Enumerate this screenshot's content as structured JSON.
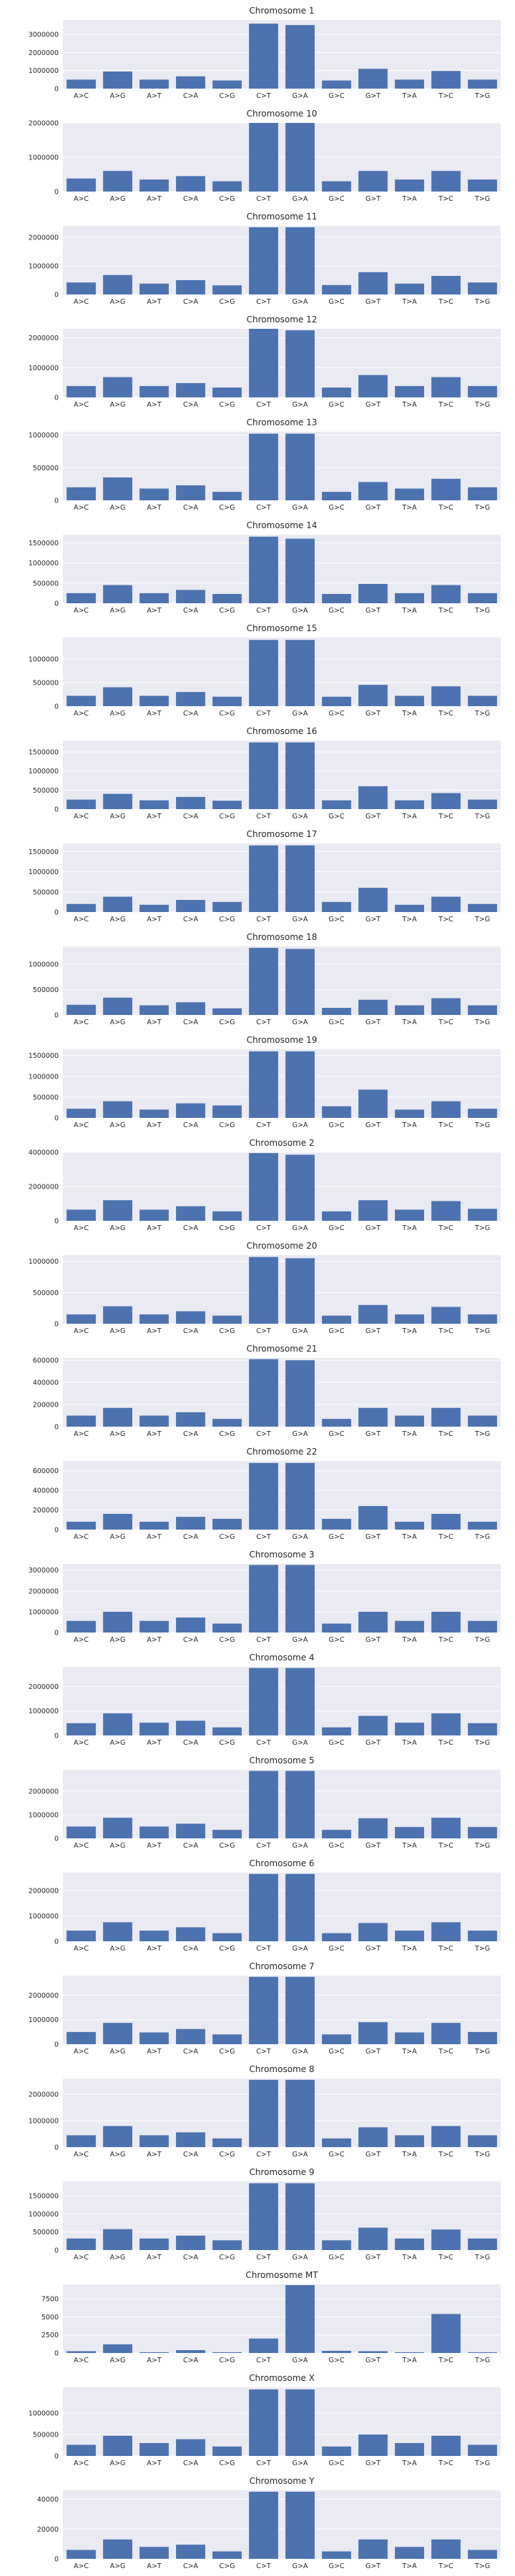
{
  "categories": [
    "A>C",
    "A>G",
    "A>T",
    "C>A",
    "C>G",
    "C>T",
    "G>A",
    "G>C",
    "G>T",
    "T>A",
    "T>C",
    "T>G"
  ],
  "colors": {
    "bar": "#4c72b0",
    "panel": "#eaeaf2",
    "grid": "#ffffff",
    "text": "#262626"
  },
  "chart_data": [
    {
      "type": "bar",
      "title": "Chromosome 1",
      "ylim": [
        0,
        3800000
      ],
      "yticks": [
        0,
        1000000,
        2000000,
        3000000
      ],
      "values": [
        500000,
        950000,
        500000,
        680000,
        450000,
        3600000,
        3520000,
        450000,
        1100000,
        500000,
        980000,
        500000
      ]
    },
    {
      "type": "bar",
      "title": "Chromosome 10",
      "ylim": [
        0,
        2000000
      ],
      "yticks": [
        0,
        1000000,
        2000000
      ],
      "values": [
        380000,
        600000,
        350000,
        450000,
        300000,
        2000000,
        2000000,
        300000,
        600000,
        350000,
        600000,
        350000
      ]
    },
    {
      "type": "bar",
      "title": "Chromosome 11",
      "ylim": [
        0,
        2400000
      ],
      "yticks": [
        0,
        1000000,
        2000000
      ],
      "values": [
        420000,
        680000,
        380000,
        500000,
        320000,
        2350000,
        2350000,
        330000,
        780000,
        380000,
        650000,
        420000
      ]
    },
    {
      "type": "bar",
      "title": "Chromosome 12",
      "ylim": [
        0,
        2300000
      ],
      "yticks": [
        0,
        1000000,
        2000000
      ],
      "values": [
        380000,
        680000,
        380000,
        480000,
        330000,
        2300000,
        2250000,
        330000,
        750000,
        380000,
        680000,
        380000
      ]
    },
    {
      "type": "bar",
      "title": "Chromosome 13",
      "ylim": [
        0,
        1050000
      ],
      "yticks": [
        0,
        500000,
        1000000
      ],
      "values": [
        200000,
        350000,
        180000,
        230000,
        130000,
        1020000,
        1020000,
        130000,
        280000,
        180000,
        330000,
        200000
      ]
    },
    {
      "type": "bar",
      "title": "Chromosome 14",
      "ylim": [
        0,
        1700000
      ],
      "yticks": [
        0,
        500000,
        1000000,
        1500000
      ],
      "values": [
        250000,
        450000,
        250000,
        330000,
        230000,
        1650000,
        1600000,
        230000,
        480000,
        250000,
        450000,
        250000
      ]
    },
    {
      "type": "bar",
      "title": "Chromosome 15",
      "ylim": [
        0,
        1450000
      ],
      "yticks": [
        0,
        500000,
        1000000
      ],
      "values": [
        220000,
        400000,
        220000,
        300000,
        200000,
        1400000,
        1400000,
        200000,
        450000,
        220000,
        420000,
        220000
      ]
    },
    {
      "type": "bar",
      "title": "Chromosome 16",
      "ylim": [
        0,
        1800000
      ],
      "yticks": [
        0,
        500000,
        1000000,
        1500000
      ],
      "values": [
        250000,
        400000,
        230000,
        320000,
        220000,
        1750000,
        1750000,
        230000,
        600000,
        230000,
        420000,
        250000
      ]
    },
    {
      "type": "bar",
      "title": "Chromosome 17",
      "ylim": [
        0,
        1700000
      ],
      "yticks": [
        0,
        500000,
        1000000,
        1500000
      ],
      "values": [
        200000,
        380000,
        180000,
        300000,
        250000,
        1650000,
        1650000,
        250000,
        600000,
        180000,
        380000,
        200000
      ]
    },
    {
      "type": "bar",
      "title": "Chromosome 18",
      "ylim": [
        0,
        1350000
      ],
      "yticks": [
        0,
        500000,
        1000000
      ],
      "values": [
        200000,
        340000,
        190000,
        250000,
        130000,
        1320000,
        1300000,
        140000,
        300000,
        190000,
        330000,
        190000
      ]
    },
    {
      "type": "bar",
      "title": "Chromosome 19",
      "ylim": [
        0,
        1650000
      ],
      "yticks": [
        0,
        500000,
        1000000,
        1500000
      ],
      "values": [
        220000,
        400000,
        200000,
        350000,
        300000,
        1600000,
        1600000,
        280000,
        680000,
        200000,
        400000,
        220000
      ]
    },
    {
      "type": "bar",
      "title": "Chromosome 2",
      "ylim": [
        0,
        4000000
      ],
      "yticks": [
        0,
        2000000,
        4000000
      ],
      "values": [
        650000,
        1200000,
        650000,
        850000,
        550000,
        3950000,
        3850000,
        550000,
        1200000,
        650000,
        1150000,
        700000
      ]
    },
    {
      "type": "bar",
      "title": "Chromosome 20",
      "ylim": [
        0,
        1100000
      ],
      "yticks": [
        0,
        500000,
        1000000
      ],
      "values": [
        150000,
        280000,
        150000,
        200000,
        130000,
        1070000,
        1050000,
        130000,
        300000,
        150000,
        270000,
        150000
      ]
    },
    {
      "type": "bar",
      "title": "Chromosome 21",
      "ylim": [
        0,
        620000
      ],
      "yticks": [
        0,
        200000,
        400000,
        600000
      ],
      "values": [
        100000,
        170000,
        100000,
        130000,
        70000,
        610000,
        600000,
        70000,
        170000,
        100000,
        170000,
        100000
      ]
    },
    {
      "type": "bar",
      "title": "Chromosome 22",
      "ylim": [
        0,
        700000
      ],
      "yticks": [
        0,
        200000,
        400000,
        600000
      ],
      "values": [
        80000,
        160000,
        80000,
        130000,
        110000,
        680000,
        680000,
        110000,
        240000,
        80000,
        160000,
        80000
      ]
    },
    {
      "type": "bar",
      "title": "Chromosome 3",
      "ylim": [
        0,
        3300000
      ],
      "yticks": [
        0,
        1000000,
        2000000,
        3000000
      ],
      "values": [
        560000,
        1000000,
        560000,
        720000,
        430000,
        3250000,
        3250000,
        430000,
        1000000,
        560000,
        1000000,
        560000
      ]
    },
    {
      "type": "bar",
      "title": "Chromosome 4",
      "ylim": [
        0,
        2800000
      ],
      "yticks": [
        0,
        1000000,
        2000000
      ],
      "values": [
        500000,
        900000,
        520000,
        600000,
        330000,
        2750000,
        2750000,
        330000,
        800000,
        520000,
        900000,
        500000
      ]
    },
    {
      "type": "bar",
      "title": "Chromosome 5",
      "ylim": [
        0,
        2900000
      ],
      "yticks": [
        0,
        1000000,
        2000000
      ],
      "values": [
        500000,
        870000,
        500000,
        620000,
        360000,
        2850000,
        2850000,
        360000,
        850000,
        480000,
        870000,
        480000
      ]
    },
    {
      "type": "bar",
      "title": "Chromosome 6",
      "ylim": [
        0,
        2700000
      ],
      "yticks": [
        0,
        1000000,
        2000000
      ],
      "values": [
        420000,
        750000,
        420000,
        550000,
        320000,
        2650000,
        2650000,
        320000,
        720000,
        420000,
        750000,
        420000
      ]
    },
    {
      "type": "bar",
      "title": "Chromosome 7",
      "ylim": [
        0,
        2800000
      ],
      "yticks": [
        0,
        1000000,
        2000000
      ],
      "values": [
        500000,
        870000,
        480000,
        620000,
        400000,
        2750000,
        2750000,
        400000,
        900000,
        480000,
        870000,
        500000
      ]
    },
    {
      "type": "bar",
      "title": "Chromosome 8",
      "ylim": [
        0,
        2600000
      ],
      "yticks": [
        0,
        1000000,
        2000000
      ],
      "values": [
        450000,
        800000,
        450000,
        560000,
        330000,
        2550000,
        2550000,
        330000,
        750000,
        450000,
        800000,
        450000
      ]
    },
    {
      "type": "bar",
      "title": "Chromosome 9",
      "ylim": [
        0,
        1900000
      ],
      "yticks": [
        0,
        500000,
        1000000,
        1500000
      ],
      "values": [
        320000,
        580000,
        320000,
        400000,
        270000,
        1850000,
        1850000,
        270000,
        620000,
        320000,
        570000,
        320000
      ]
    },
    {
      "type": "bar",
      "title": "Chromosome MT",
      "ylim": [
        0,
        9500
      ],
      "yticks": [
        0,
        2500,
        5000,
        7500
      ],
      "values": [
        250,
        1200,
        100,
        400,
        100,
        2000,
        9400,
        300,
        250,
        100,
        5400,
        100
      ]
    },
    {
      "type": "bar",
      "title": "Chromosome X",
      "ylim": [
        0,
        1600000
      ],
      "yticks": [
        0,
        500000,
        1000000
      ],
      "values": [
        260000,
        470000,
        300000,
        390000,
        220000,
        1550000,
        1550000,
        220000,
        500000,
        300000,
        470000,
        260000
      ]
    },
    {
      "type": "bar",
      "title": "Chromosome Y",
      "ylim": [
        0,
        46000
      ],
      "yticks": [
        0,
        20000,
        40000
      ],
      "values": [
        6000,
        13000,
        8000,
        9500,
        5000,
        45000,
        45000,
        5000,
        13000,
        8000,
        13000,
        6000
      ]
    }
  ]
}
